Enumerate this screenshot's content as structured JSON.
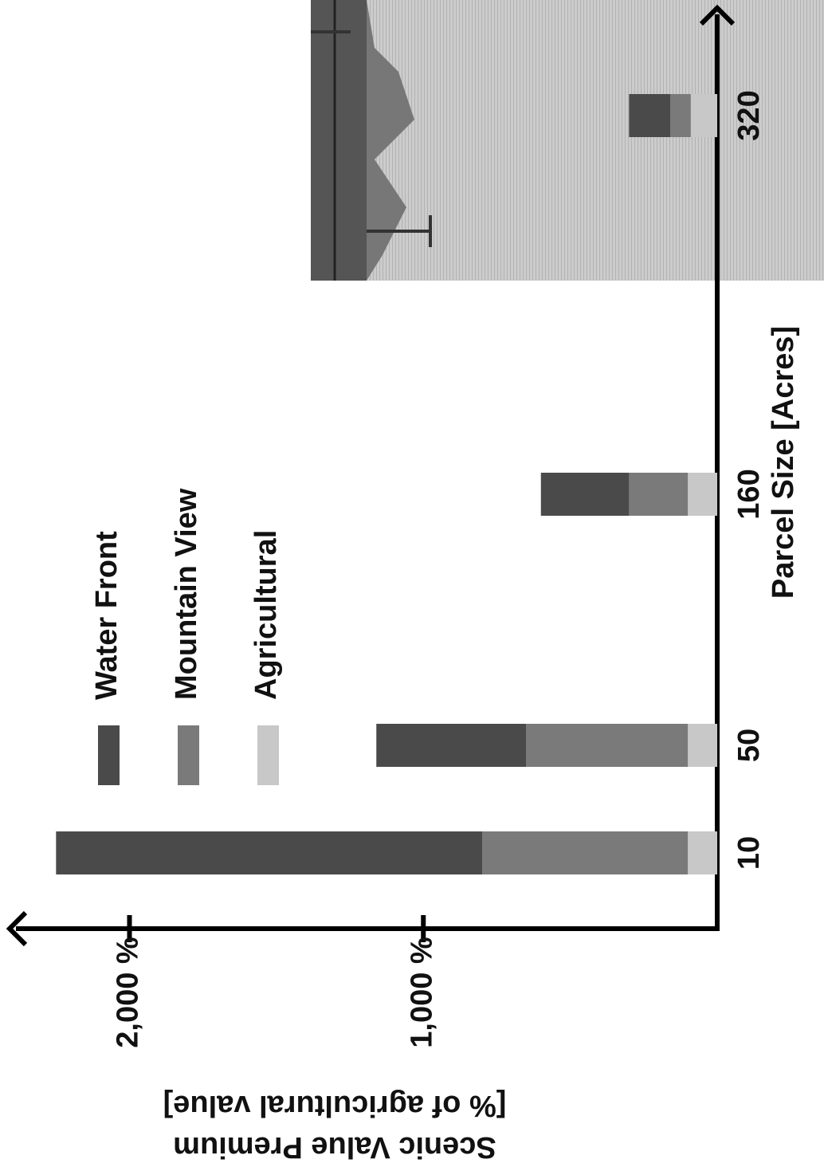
{
  "chart_data": {
    "type": "bar",
    "stacked": true,
    "categories": [
      "10",
      "50",
      "160",
      "320"
    ],
    "series": [
      {
        "name": "Water Front",
        "color": "#4a4a4a",
        "values": [
          1450,
          510,
          300,
          140
        ]
      },
      {
        "name": "Mountain View",
        "color": "#7a7a7a",
        "values": [
          700,
          550,
          200,
          70
        ]
      },
      {
        "name": "Agricultural",
        "color": "#c8c8c8",
        "values": [
          100,
          100,
          100,
          90
        ]
      }
    ],
    "xlabel": "Parcel Size [Acres]",
    "ylabel": [
      "Scenic Value Premium",
      "[% of agricultural value]"
    ],
    "ylim": [
      0,
      2400
    ],
    "yticks": [
      {
        "value": 1000,
        "label": "1,000 %"
      },
      {
        "value": 2000,
        "label": "2,000 %"
      }
    ]
  }
}
